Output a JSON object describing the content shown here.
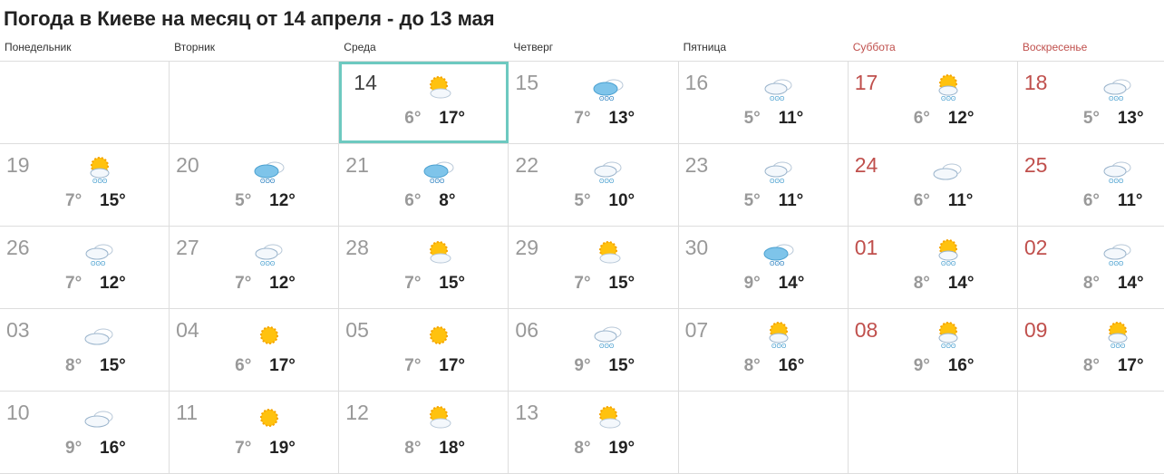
{
  "title": "Погода в Киеве на месяц от 14 апреля - до 13 мая",
  "weekdays": [
    "Понедельник",
    "Вторник",
    "Среда",
    "Четверг",
    "Пятница",
    "Суббота",
    "Воскресенье"
  ],
  "colors": {
    "weekend": "#c0504d",
    "today_border": "#6dc9c0"
  },
  "weeks": [
    [
      null,
      null,
      {
        "day": "14",
        "min": "6°",
        "max": "17°",
        "icon": "sun-cloud-icon",
        "today": true
      },
      {
        "day": "15",
        "min": "7°",
        "max": "13°",
        "icon": "rain-cloud-icon"
      },
      {
        "day": "16",
        "min": "5°",
        "max": "11°",
        "icon": "cloud-light-rain-icon"
      },
      {
        "day": "17",
        "min": "6°",
        "max": "12°",
        "icon": "sun-rain-icon"
      },
      {
        "day": "18",
        "min": "5°",
        "max": "13°",
        "icon": "cloud-light-rain-icon"
      }
    ],
    [
      {
        "day": "19",
        "min": "7°",
        "max": "15°",
        "icon": "sun-rain-icon"
      },
      {
        "day": "20",
        "min": "5°",
        "max": "12°",
        "icon": "rain-cloud-icon"
      },
      {
        "day": "21",
        "min": "6°",
        "max": "8°",
        "icon": "rain-cloud-icon"
      },
      {
        "day": "22",
        "min": "5°",
        "max": "10°",
        "icon": "cloud-light-rain-icon"
      },
      {
        "day": "23",
        "min": "5°",
        "max": "11°",
        "icon": "cloud-light-rain-icon"
      },
      {
        "day": "24",
        "min": "6°",
        "max": "11°",
        "icon": "cloud-icon"
      },
      {
        "day": "25",
        "min": "6°",
        "max": "11°",
        "icon": "cloud-light-rain-icon"
      }
    ],
    [
      {
        "day": "26",
        "min": "7°",
        "max": "12°",
        "icon": "cloud-light-rain-icon"
      },
      {
        "day": "27",
        "min": "7°",
        "max": "12°",
        "icon": "cloud-light-rain-icon"
      },
      {
        "day": "28",
        "min": "7°",
        "max": "15°",
        "icon": "sun-cloud-icon"
      },
      {
        "day": "29",
        "min": "7°",
        "max": "15°",
        "icon": "sun-cloud-icon"
      },
      {
        "day": "30",
        "min": "9°",
        "max": "14°",
        "icon": "rain-cloud-icon"
      },
      {
        "day": "01",
        "min": "8°",
        "max": "14°",
        "icon": "sun-rain-icon"
      },
      {
        "day": "02",
        "min": "8°",
        "max": "14°",
        "icon": "cloud-light-rain-icon"
      }
    ],
    [
      {
        "day": "03",
        "min": "8°",
        "max": "15°",
        "icon": "cloud-icon"
      },
      {
        "day": "04",
        "min": "6°",
        "max": "17°",
        "icon": "sun-icon"
      },
      {
        "day": "05",
        "min": "7°",
        "max": "17°",
        "icon": "sun-icon"
      },
      {
        "day": "06",
        "min": "9°",
        "max": "15°",
        "icon": "cloud-light-rain-icon"
      },
      {
        "day": "07",
        "min": "8°",
        "max": "16°",
        "icon": "sun-rain-icon"
      },
      {
        "day": "08",
        "min": "9°",
        "max": "16°",
        "icon": "sun-rain-icon"
      },
      {
        "day": "09",
        "min": "8°",
        "max": "17°",
        "icon": "sun-rain-icon"
      }
    ],
    [
      {
        "day": "10",
        "min": "9°",
        "max": "16°",
        "icon": "cloud-icon"
      },
      {
        "day": "11",
        "min": "7°",
        "max": "19°",
        "icon": "sun-icon"
      },
      {
        "day": "12",
        "min": "8°",
        "max": "18°",
        "icon": "sun-cloud-icon"
      },
      {
        "day": "13",
        "min": "8°",
        "max": "19°",
        "icon": "sun-cloud-icon"
      },
      null,
      null,
      null
    ]
  ]
}
